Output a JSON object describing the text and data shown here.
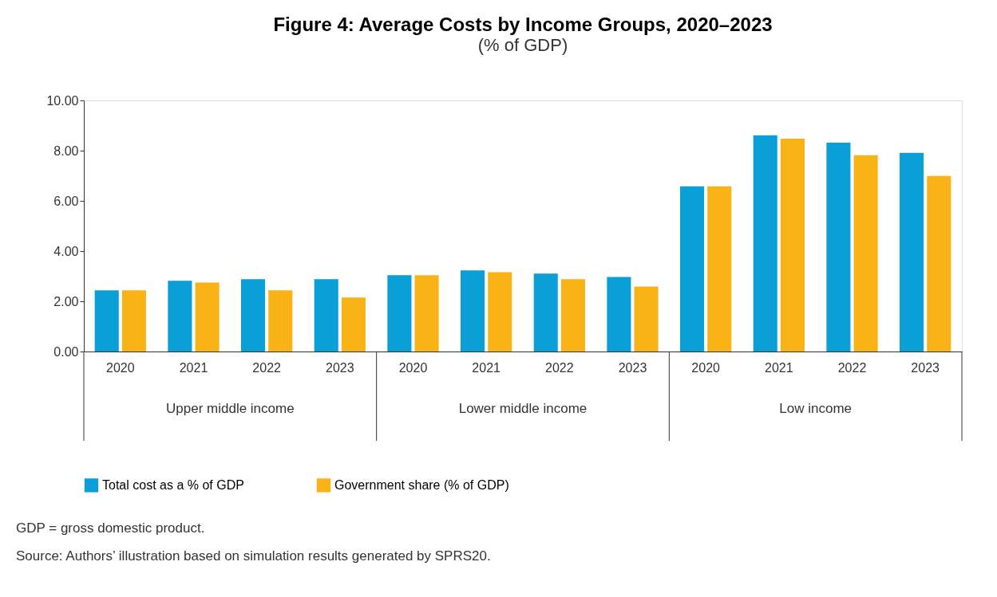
{
  "chart_data": {
    "type": "bar",
    "title": "Figure 4: Average Costs by Income Groups, 2020–2023",
    "subtitle": "(% of GDP)",
    "categories": [
      "2020",
      "2021",
      "2022",
      "2023",
      "2020",
      "2021",
      "2022",
      "2023",
      "2020",
      "2021",
      "2022",
      "2023"
    ],
    "series": [
      {
        "name": "Total cost as a % of GDP",
        "color": "#0a9fd6",
        "values": [
          2.44,
          2.82,
          2.88,
          2.88,
          3.04,
          3.23,
          3.1,
          2.97,
          6.58,
          8.61,
          8.32,
          7.91
        ]
      },
      {
        "name": "Government share (% of GDP)",
        "color": "#f9b317",
        "values": [
          2.44,
          2.75,
          2.44,
          2.15,
          3.04,
          3.16,
          2.88,
          2.59,
          6.58,
          8.48,
          7.82,
          6.99
        ]
      }
    ],
    "ylim": [
      0,
      10
    ],
    "yticks": [
      {
        "value": 0,
        "label": "0.00"
      },
      {
        "value": 2,
        "label": "2.00"
      },
      {
        "value": 4,
        "label": "4.00"
      },
      {
        "value": 6,
        "label": "6.00"
      },
      {
        "value": 8,
        "label": "8.00"
      },
      {
        "value": 10,
        "label": "10.00"
      }
    ],
    "grid": false,
    "legend": "bottom",
    "annotations": [
      "Upper middle income",
      "Lower middle income",
      "Low income",
      "GDP = gross domestic product.",
      "Source: Authors’ illustration based on simulation results generated by SPRS20."
    ]
  }
}
